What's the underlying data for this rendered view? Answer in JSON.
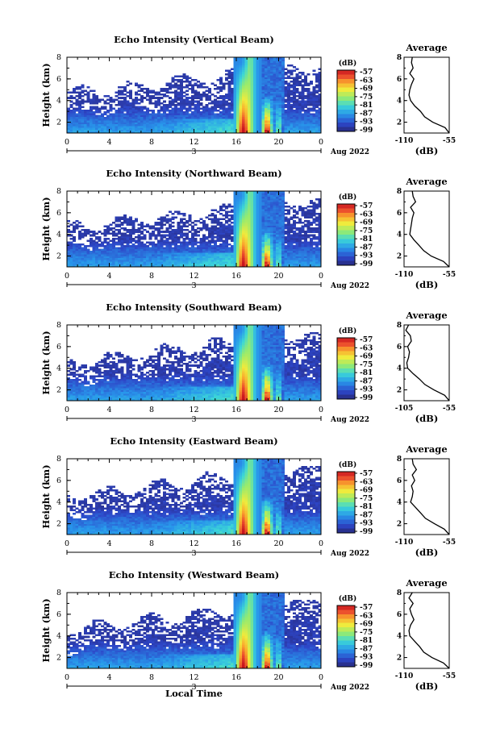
{
  "figure": {
    "x_axis_label": "Local Time",
    "date_label": "Aug 2022",
    "x_ticks": [
      "0",
      "4",
      "8",
      "12",
      "16",
      "20",
      "0"
    ],
    "day_label": "3",
    "y_axis_label": "Height (km)",
    "y_ticks": [
      "2",
      "4",
      "6",
      "8"
    ],
    "colorbar_label": "(dB)",
    "colorbar_ticks": [
      "-57",
      "-63",
      "-69",
      "-75",
      "-81",
      "-87",
      "-93",
      "-99"
    ],
    "avg_title": "Average",
    "avg_xlabel": "(dB)"
  },
  "chart_data": [
    {
      "type": "heatmap",
      "title": "Echo Intensity (Vertical Beam)",
      "xlabel": "",
      "ylabel": "Height (km)",
      "xlim": [
        0,
        24
      ],
      "ylim": [
        1,
        8
      ],
      "colorbar": {
        "label": "(dB)",
        "range": [
          -99,
          -57
        ]
      },
      "profile": {
        "title": "Average",
        "xlabel": "(dB)",
        "xticks": [
          "-110",
          "-55"
        ],
        "xlim": [
          -110,
          -55
        ],
        "height_km": [
          1.0,
          1.5,
          2.0,
          2.5,
          3.0,
          3.5,
          4.0,
          4.5,
          5.0,
          5.5,
          6.0,
          6.5,
          7.0,
          7.5,
          8.0
        ],
        "value_db": [
          -55,
          -60,
          -75,
          -85,
          -90,
          -97,
          -102,
          -104,
          -103,
          -101,
          -98,
          -103,
          -99,
          -101,
          -100
        ]
      }
    },
    {
      "type": "heatmap",
      "title": "Echo Intensity (Northward Beam)",
      "xlabel": "",
      "ylabel": "Height (km)",
      "xlim": [
        0,
        24
      ],
      "ylim": [
        1,
        8
      ],
      "colorbar": {
        "label": "(dB)",
        "range": [
          -99,
          -57
        ]
      },
      "profile": {
        "title": "Average",
        "xlabel": "(dB)",
        "xticks": [
          "-110",
          "-55"
        ],
        "xlim": [
          -110,
          -55
        ],
        "height_km": [
          1.0,
          1.5,
          2.0,
          2.5,
          3.0,
          3.5,
          4.0,
          4.5,
          5.0,
          5.5,
          6.0,
          6.5,
          7.0,
          7.5,
          8.0
        ],
        "value_db": [
          -55,
          -62,
          -77,
          -86,
          -92,
          -98,
          -103,
          -102,
          -101,
          -100,
          -98,
          -102,
          -96,
          -99,
          -100
        ]
      }
    },
    {
      "type": "heatmap",
      "title": "Echo Intensity (Southward Beam)",
      "xlabel": "",
      "ylabel": "Height (km)",
      "xlim": [
        0,
        24
      ],
      "ylim": [
        1,
        8
      ],
      "colorbar": {
        "label": "(dB)",
        "range": [
          -99,
          -57
        ]
      },
      "profile": {
        "title": "Average",
        "xlabel": "(dB)",
        "xticks": [
          "-105",
          "-55"
        ],
        "xlim": [
          -105,
          -55
        ],
        "height_km": [
          1.0,
          1.5,
          2.0,
          2.5,
          3.0,
          3.5,
          4.0,
          4.5,
          5.0,
          5.5,
          6.0,
          6.5,
          7.0,
          7.5,
          8.0
        ],
        "value_db": [
          -55,
          -60,
          -72,
          -82,
          -88,
          -95,
          -101,
          -102,
          -100,
          -99,
          -101,
          -97,
          -98,
          -103,
          -100
        ]
      }
    },
    {
      "type": "heatmap",
      "title": "Echo Intensity (Eastward Beam)",
      "xlabel": "",
      "ylabel": "Height (km)",
      "xlim": [
        0,
        24
      ],
      "ylim": [
        1,
        8
      ],
      "colorbar": {
        "label": "(dB)",
        "range": [
          -99,
          -57
        ]
      },
      "profile": {
        "title": "Average",
        "xlabel": "(dB)",
        "xticks": [
          "-110",
          "-55"
        ],
        "xlim": [
          -110,
          -55
        ],
        "height_km": [
          1.0,
          1.5,
          2.0,
          2.5,
          3.0,
          3.5,
          4.0,
          4.5,
          5.0,
          5.5,
          6.0,
          6.5,
          7.0,
          7.5,
          8.0
        ],
        "value_db": [
          -55,
          -61,
          -73,
          -84,
          -90,
          -96,
          -102,
          -100,
          -99,
          -101,
          -97,
          -100,
          -95,
          -99,
          -100
        ]
      }
    },
    {
      "type": "heatmap",
      "title": "Echo Intensity (Westward Beam)",
      "xlabel": "Local Time",
      "ylabel": "Height (km)",
      "xlim": [
        0,
        24
      ],
      "ylim": [
        1,
        8
      ],
      "colorbar": {
        "label": "(dB)",
        "range": [
          -99,
          -57
        ]
      },
      "profile": {
        "title": "Average",
        "xlabel": "(dB)",
        "xticks": [
          "-110",
          "-55"
        ],
        "xlim": [
          -110,
          -55
        ],
        "height_km": [
          1.0,
          1.5,
          2.0,
          2.5,
          3.0,
          3.5,
          4.0,
          4.5,
          5.0,
          5.5,
          6.0,
          6.5,
          7.0,
          7.5,
          8.0
        ],
        "value_db": [
          -55,
          -62,
          -76,
          -86,
          -91,
          -97,
          -103,
          -104,
          -102,
          -98,
          -101,
          -103,
          -99,
          -104,
          -100
        ]
      }
    }
  ]
}
